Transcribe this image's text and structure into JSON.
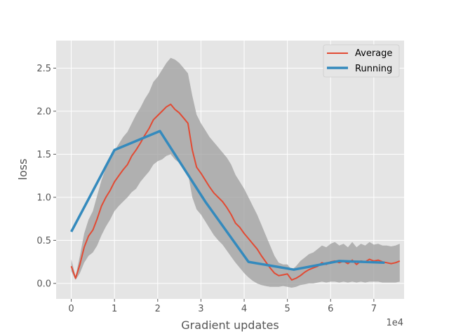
{
  "chart_data": {
    "type": "line",
    "title": "",
    "xlabel": "Gradient updates",
    "ylabel": "loss",
    "x_offset_label": "1e4",
    "xlim": [
      -0.35,
      7.7
    ],
    "ylim": [
      -0.18,
      2.82
    ],
    "x_ticks": [
      0,
      1,
      2,
      3,
      4,
      5,
      6,
      7
    ],
    "y_ticks": [
      0.0,
      0.5,
      1.0,
      1.5,
      2.0,
      2.5
    ],
    "x_tick_labels": [
      "0",
      "1",
      "2",
      "3",
      "4",
      "5",
      "6",
      "7"
    ],
    "y_tick_labels": [
      "0.0",
      "0.5",
      "1.0",
      "1.5",
      "2.0",
      "2.5"
    ],
    "grid": true,
    "legend_position": "top-right",
    "colors": {
      "background": "#e5e5e5",
      "grid": "#ffffff",
      "band": "#9e9e9e",
      "average": "#e24a33",
      "running": "#348abd"
    },
    "series": [
      {
        "name": "Average",
        "style": "line",
        "x": [
          0,
          0.1,
          0.2,
          0.3,
          0.4,
          0.5,
          0.6,
          0.7,
          0.8,
          0.9,
          1.0,
          1.1,
          1.2,
          1.3,
          1.4,
          1.5,
          1.6,
          1.7,
          1.8,
          1.9,
          2.0,
          2.1,
          2.2,
          2.3,
          2.4,
          2.5,
          2.6,
          2.7,
          2.8,
          2.9,
          3.0,
          3.1,
          3.2,
          3.3,
          3.4,
          3.5,
          3.6,
          3.7,
          3.8,
          3.9,
          4.0,
          4.1,
          4.2,
          4.3,
          4.4,
          4.5,
          4.6,
          4.7,
          4.8,
          4.9,
          5.0,
          5.1,
          5.2,
          5.3,
          5.4,
          5.5,
          5.6,
          5.7,
          5.8,
          5.9,
          6.0,
          6.1,
          6.2,
          6.3,
          6.4,
          6.5,
          6.6,
          6.7,
          6.8,
          6.9,
          7.0,
          7.1,
          7.2,
          7.3,
          7.4,
          7.5,
          7.6
        ],
        "y": [
          0.2,
          0.06,
          0.22,
          0.42,
          0.55,
          0.62,
          0.75,
          0.9,
          1.0,
          1.08,
          1.18,
          1.25,
          1.32,
          1.38,
          1.48,
          1.55,
          1.63,
          1.72,
          1.8,
          1.9,
          1.95,
          2.0,
          2.05,
          2.08,
          2.02,
          1.98,
          1.92,
          1.86,
          1.55,
          1.35,
          1.28,
          1.2,
          1.12,
          1.05,
          1.0,
          0.95,
          0.88,
          0.8,
          0.7,
          0.65,
          0.58,
          0.52,
          0.46,
          0.4,
          0.32,
          0.25,
          0.18,
          0.12,
          0.09,
          0.1,
          0.11,
          0.04,
          0.06,
          0.09,
          0.13,
          0.16,
          0.18,
          0.2,
          0.24,
          0.22,
          0.25,
          0.26,
          0.24,
          0.26,
          0.23,
          0.27,
          0.22,
          0.26,
          0.25,
          0.28,
          0.26,
          0.27,
          0.25,
          0.24,
          0.23,
          0.24,
          0.26
        ]
      },
      {
        "name": "Running",
        "style": "line",
        "x": [
          0.0,
          1.0,
          2.05,
          3.1,
          4.1,
          5.15,
          6.2,
          7.25
        ],
        "y": [
          0.6,
          1.55,
          1.77,
          0.95,
          0.25,
          0.16,
          0.26,
          0.24
        ]
      }
    ],
    "band": {
      "x": [
        0,
        0.1,
        0.2,
        0.3,
        0.4,
        0.5,
        0.6,
        0.7,
        0.8,
        0.9,
        1.0,
        1.1,
        1.2,
        1.3,
        1.4,
        1.5,
        1.6,
        1.7,
        1.8,
        1.9,
        2.0,
        2.1,
        2.2,
        2.3,
        2.4,
        2.5,
        2.6,
        2.7,
        2.8,
        2.9,
        3.0,
        3.1,
        3.2,
        3.3,
        3.4,
        3.5,
        3.6,
        3.7,
        3.8,
        3.9,
        4.0,
        4.1,
        4.2,
        4.3,
        4.4,
        4.5,
        4.6,
        4.7,
        4.8,
        4.9,
        5.0,
        5.1,
        5.2,
        5.3,
        5.4,
        5.5,
        5.6,
        5.7,
        5.8,
        5.9,
        6.0,
        6.1,
        6.2,
        6.3,
        6.4,
        6.5,
        6.6,
        6.7,
        6.8,
        6.9,
        7.0,
        7.1,
        7.2,
        7.3,
        7.4,
        7.5,
        7.6
      ],
      "lower": [
        0.14,
        0.04,
        0.12,
        0.24,
        0.32,
        0.36,
        0.44,
        0.56,
        0.66,
        0.74,
        0.84,
        0.9,
        0.95,
        1.0,
        1.06,
        1.1,
        1.18,
        1.24,
        1.3,
        1.38,
        1.42,
        1.44,
        1.48,
        1.5,
        1.44,
        1.4,
        1.34,
        1.28,
        1.0,
        0.86,
        0.8,
        0.72,
        0.64,
        0.56,
        0.5,
        0.45,
        0.38,
        0.31,
        0.24,
        0.18,
        0.12,
        0.07,
        0.03,
        0.0,
        -0.02,
        -0.03,
        -0.04,
        -0.04,
        -0.04,
        -0.03,
        -0.04,
        -0.05,
        -0.04,
        -0.02,
        -0.01,
        0.0,
        0.0,
        0.01,
        0.02,
        0.01,
        0.02,
        0.02,
        0.01,
        0.02,
        0.01,
        0.02,
        0.01,
        0.02,
        0.01,
        0.02,
        0.02,
        0.02,
        0.01,
        0.01,
        0.01,
        0.01,
        0.02
      ],
      "upper": [
        0.28,
        0.08,
        0.32,
        0.58,
        0.74,
        0.84,
        1.02,
        1.2,
        1.34,
        1.44,
        1.54,
        1.62,
        1.7,
        1.76,
        1.86,
        1.96,
        2.04,
        2.14,
        2.22,
        2.34,
        2.4,
        2.48,
        2.56,
        2.62,
        2.6,
        2.56,
        2.5,
        2.44,
        2.18,
        1.96,
        1.86,
        1.78,
        1.7,
        1.64,
        1.58,
        1.52,
        1.46,
        1.38,
        1.26,
        1.18,
        1.1,
        1.0,
        0.9,
        0.8,
        0.68,
        0.56,
        0.44,
        0.32,
        0.24,
        0.22,
        0.22,
        0.16,
        0.2,
        0.26,
        0.3,
        0.34,
        0.36,
        0.4,
        0.44,
        0.42,
        0.46,
        0.48,
        0.44,
        0.46,
        0.42,
        0.48,
        0.42,
        0.46,
        0.44,
        0.48,
        0.45,
        0.46,
        0.44,
        0.44,
        0.43,
        0.44,
        0.46
      ]
    }
  }
}
